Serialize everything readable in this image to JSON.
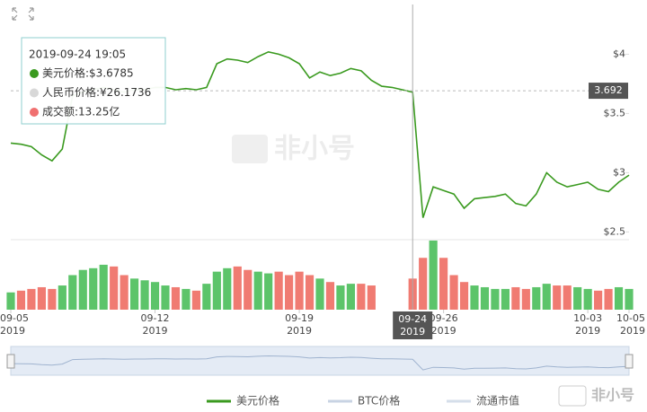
{
  "chart_data": {
    "type": "line",
    "x": [
      "2019-09-05 00:00",
      "2019-09-05 12:00",
      "2019-09-06 00:00",
      "2019-09-06 12:00",
      "2019-09-07 00:00",
      "2019-09-07 12:00",
      "2019-09-08 00:00",
      "2019-09-08 12:00",
      "2019-09-09 00:00",
      "2019-09-09 12:00",
      "2019-09-10 00:00",
      "2019-09-10 12:00",
      "2019-09-11 00:00",
      "2019-09-11 12:00",
      "2019-09-12 00:00",
      "2019-09-12 12:00",
      "2019-09-13 00:00",
      "2019-09-13 12:00",
      "2019-09-14 00:00",
      "2019-09-14 12:00",
      "2019-09-15 00:00",
      "2019-09-15 12:00",
      "2019-09-16 00:00",
      "2019-09-16 12:00",
      "2019-09-17 00:00",
      "2019-09-17 12:00",
      "2019-09-18 00:00",
      "2019-09-18 12:00",
      "2019-09-19 00:00",
      "2019-09-19 12:00",
      "2019-09-20 00:00",
      "2019-09-20 12:00",
      "2019-09-21 00:00",
      "2019-09-21 12:00",
      "2019-09-22 00:00",
      "2019-09-22 12:00",
      "2019-09-23 00:00",
      "2019-09-23 12:00",
      "2019-09-24 00:00",
      "2019-09-24 12:00",
      "2019-09-25 00:00",
      "2019-09-25 12:00",
      "2019-09-26 00:00",
      "2019-09-26 12:00",
      "2019-09-27 00:00",
      "2019-09-27 12:00",
      "2019-09-28 00:00",
      "2019-09-28 12:00",
      "2019-09-29 00:00",
      "2019-09-29 12:00",
      "2019-09-30 00:00",
      "2019-09-30 12:00",
      "2019-10-01 00:00",
      "2019-10-01 12:00",
      "2019-10-02 00:00",
      "2019-10-02 12:00",
      "2019-10-03 00:00",
      "2019-10-03 12:00",
      "2019-10-04 00:00",
      "2019-10-04 12:00",
      "2019-10-05 00:00"
    ],
    "xlim": [
      "2019-09-05 00:00",
      "2019-10-05 00:00"
    ],
    "xticks": [
      {
        "value": "2019-09-05 00:00",
        "label": "09-05",
        "year": "2019"
      },
      {
        "value": "2019-09-12 00:00",
        "label": "09-12",
        "year": "2019"
      },
      {
        "value": "2019-09-19 00:00",
        "label": "09-19",
        "year": "2019"
      },
      {
        "value": "2019-09-26 00:00",
        "label": "09-26",
        "year": "2019"
      },
      {
        "value": "2019-10-03 00:00",
        "label": "10-03",
        "year": "2019"
      },
      {
        "value": "2019-10-05 00:00",
        "label": "10-05",
        "year": "2019"
      }
    ],
    "series": [
      {
        "name": "美元价格",
        "color": "#3a9a1f",
        "values": [
          3.25,
          3.24,
          3.22,
          3.15,
          3.1,
          3.2,
          3.65,
          3.68,
          3.7,
          3.72,
          3.7,
          3.68,
          3.7,
          3.7,
          3.72,
          3.72,
          3.7,
          3.71,
          3.7,
          3.72,
          3.92,
          3.96,
          3.95,
          3.93,
          3.98,
          4.02,
          4.0,
          3.97,
          3.92,
          3.8,
          3.85,
          3.82,
          3.84,
          3.88,
          3.86,
          3.78,
          3.73,
          3.72,
          3.7,
          3.68,
          2.62,
          2.88,
          2.85,
          2.82,
          2.7,
          2.78,
          2.79,
          2.8,
          2.82,
          2.74,
          2.72,
          2.82,
          3.0,
          2.92,
          2.88,
          2.9,
          2.92,
          2.86,
          2.84,
          2.92,
          2.98
        ]
      }
    ],
    "ylim": [
      2.45,
      4.42
    ],
    "yticks": [
      {
        "value": 2.5,
        "label": "$2.5"
      },
      {
        "value": 3,
        "label": "$3"
      },
      {
        "value": 3.5,
        "label": "$3.5"
      },
      {
        "value": 4,
        "label": "$4"
      }
    ],
    "volume": {
      "up_color": "#5cc46a",
      "down_color": "#f07b72",
      "ylim": [
        0,
        40
      ],
      "values": [
        10,
        11,
        12,
        13,
        12,
        14,
        20,
        23,
        24,
        26,
        25,
        20,
        18,
        17,
        16,
        14,
        13,
        12,
        11,
        15,
        22,
        24,
        25,
        23,
        22,
        21,
        22,
        20,
        22,
        20,
        18,
        16,
        14,
        15,
        15,
        14,
        null,
        null,
        null,
        18,
        30,
        40,
        30,
        20,
        16,
        14,
        13,
        12,
        12,
        13,
        12,
        13,
        15,
        14,
        14,
        13,
        12,
        11,
        12,
        13,
        12
      ]
    },
    "legend_inactive": [
      {
        "name": "BTC价格",
        "color": "#c8d3e3"
      },
      {
        "name": "流通市值",
        "color": "#d5deea"
      }
    ],
    "crosshair": {
      "value": 3.692,
      "x": "2019-09-24 12:00",
      "label": "09-24",
      "year": "2019"
    },
    "tooltip": {
      "title": "2019-09-24 19:05",
      "items": [
        {
          "text": "美元价格:$3.6785",
          "color": "#3a9a1f"
        },
        {
          "text": "人民币价格:¥26.1736",
          "color": "#d8d8d8"
        },
        {
          "text": "成交额:13.25亿",
          "color": "#f07070"
        }
      ]
    },
    "watermark": "非小号",
    "logo": "非小号"
  }
}
